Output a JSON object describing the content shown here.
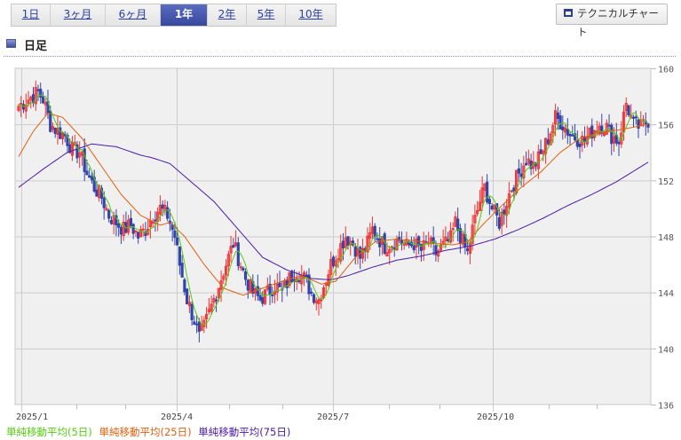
{
  "period_tabs": [
    {
      "label": "1日",
      "active": false
    },
    {
      "label": "3ヶ月",
      "active": false
    },
    {
      "label": "6ヶ月",
      "active": false
    },
    {
      "label": "1年",
      "active": true
    },
    {
      "label": "2年",
      "active": false
    },
    {
      "label": "5年",
      "active": false
    },
    {
      "label": "10年",
      "active": false
    }
  ],
  "technical_button": {
    "label": "テクニカルチャート",
    "icon": "window-icon"
  },
  "section": {
    "title": "日足",
    "icon": "square-bullet-icon"
  },
  "legend": [
    {
      "label": "単純移動平均(5日)",
      "color": "#55cc11"
    },
    {
      "label": "単純移動平均(25日)",
      "color": "#e06010"
    },
    {
      "label": "単純移動平均(75日)",
      "color": "#4b1aa8"
    }
  ],
  "colors": {
    "up_candle": "#ee3333",
    "down_candle": "#3344aa",
    "plot_bg": "#f0f0f0",
    "grid": "#cccccc",
    "active_tab": "#3e50a8"
  },
  "chart_data": {
    "type": "candlestick",
    "title": "日足",
    "x_tick_labels": [
      "2025/1",
      "2025/4",
      "2025/7",
      "2025/10"
    ],
    "y_tick_labels": [
      "160",
      "156",
      "152",
      "148",
      "144",
      "140",
      "136"
    ],
    "ylim": [
      136,
      160
    ],
    "y_axis_position": "right",
    "grid": true,
    "legend_position": "bottom-left",
    "series_ma": [
      {
        "name": "単純移動平均(5日)",
        "color": "#55cc11"
      },
      {
        "name": "単純移動平均(25日)",
        "color": "#e06010"
      },
      {
        "name": "単純移動平均(75日)",
        "color": "#4b1aa8"
      }
    ],
    "close_path": [
      [
        0,
        157.3
      ],
      [
        4,
        157.8
      ],
      [
        8,
        158.3
      ],
      [
        10,
        157.8
      ],
      [
        13,
        156.0
      ],
      [
        16,
        155.5
      ],
      [
        19,
        155.2
      ],
      [
        22,
        154.2
      ],
      [
        25,
        154.0
      ],
      [
        28,
        152.5
      ],
      [
        31,
        151.5
      ],
      [
        34,
        150.8
      ],
      [
        37,
        149.5
      ],
      [
        40,
        149.0
      ],
      [
        43,
        148.5
      ],
      [
        46,
        148.8
      ],
      [
        49,
        148.0
      ],
      [
        52,
        148.5
      ],
      [
        55,
        149.5
      ],
      [
        58,
        150.0
      ],
      [
        61,
        149.5
      ],
      [
        64,
        148.0
      ],
      [
        66,
        146.0
      ],
      [
        69,
        143.5
      ],
      [
        72,
        142.0
      ],
      [
        74,
        140.8
      ],
      [
        76,
        141.5
      ],
      [
        79,
        143.0
      ],
      [
        82,
        144.5
      ],
      [
        85,
        146.0
      ],
      [
        88,
        147.5
      ],
      [
        90,
        146.5
      ],
      [
        93,
        145.0
      ],
      [
        96,
        144.0
      ],
      [
        99,
        143.5
      ],
      [
        102,
        144.0
      ],
      [
        105,
        144.5
      ],
      [
        108,
        144.0
      ],
      [
        111,
        145.0
      ],
      [
        114,
        145.5
      ],
      [
        117,
        145.0
      ],
      [
        120,
        144.0
      ],
      [
        123,
        143.5
      ],
      [
        125,
        144.5
      ],
      [
        128,
        146.0
      ],
      [
        131,
        147.0
      ],
      [
        134,
        148.0
      ],
      [
        137,
        147.5
      ],
      [
        140,
        146.5
      ],
      [
        143,
        147.5
      ],
      [
        145,
        148.5
      ],
      [
        147,
        148.0
      ],
      [
        150,
        147.3
      ],
      [
        153,
        147.5
      ],
      [
        156,
        147.8
      ],
      [
        159,
        147.3
      ],
      [
        162,
        147.5
      ],
      [
        165,
        147.0
      ],
      [
        168,
        147.6
      ],
      [
        171,
        146.8
      ],
      [
        174,
        147.3
      ],
      [
        177,
        147.8
      ],
      [
        179,
        149.0
      ],
      [
        181,
        148.0
      ],
      [
        184,
        146.8
      ],
      [
        186,
        148.5
      ],
      [
        189,
        150.5
      ],
      [
        191,
        151.5
      ],
      [
        194,
        150.0
      ],
      [
        197,
        149.0
      ],
      [
        199,
        150.0
      ],
      [
        202,
        151.5
      ],
      [
        205,
        152.5
      ],
      [
        208,
        153.5
      ],
      [
        211,
        153.0
      ],
      [
        214,
        153.8
      ],
      [
        217,
        155.0
      ],
      [
        220,
        156.5
      ],
      [
        223,
        156.0
      ],
      [
        226,
        155.3
      ],
      [
        229,
        155.0
      ],
      [
        232,
        154.8
      ],
      [
        235,
        155.5
      ],
      [
        238,
        156.0
      ],
      [
        241,
        155.8
      ],
      [
        243,
        155.2
      ],
      [
        246,
        154.8
      ],
      [
        249,
        157.5
      ],
      [
        252,
        156.0
      ],
      [
        255,
        155.8
      ],
      [
        258,
        156.3
      ]
    ],
    "sma75_path": [
      [
        0,
        151.5
      ],
      [
        10,
        152.8
      ],
      [
        20,
        154.0
      ],
      [
        30,
        154.6
      ],
      [
        40,
        154.4
      ],
      [
        50,
        153.8
      ],
      [
        55,
        153.6
      ],
      [
        62,
        153.2
      ],
      [
        70,
        152.0
      ],
      [
        80,
        150.5
      ],
      [
        90,
        148.5
      ],
      [
        100,
        146.5
      ],
      [
        110,
        145.6
      ],
      [
        120,
        145.0
      ],
      [
        128,
        144.9
      ],
      [
        135,
        145.2
      ],
      [
        145,
        145.8
      ],
      [
        155,
        146.3
      ],
      [
        165,
        146.6
      ],
      [
        175,
        147.0
      ],
      [
        185,
        147.3
      ],
      [
        195,
        147.8
      ],
      [
        205,
        148.5
      ],
      [
        215,
        149.3
      ],
      [
        225,
        150.2
      ],
      [
        235,
        151.0
      ],
      [
        245,
        151.9
      ],
      [
        258,
        153.3
      ]
    ],
    "sma25_path": [
      [
        0,
        153.7
      ],
      [
        6,
        155.5
      ],
      [
        12,
        156.8
      ],
      [
        18,
        156.5
      ],
      [
        26,
        155.0
      ],
      [
        34,
        153.0
      ],
      [
        42,
        151.0
      ],
      [
        50,
        149.5
      ],
      [
        58,
        148.8
      ],
      [
        62,
        149.0
      ],
      [
        68,
        148.0
      ],
      [
        76,
        146.0
      ],
      [
        84,
        144.3
      ],
      [
        92,
        143.8
      ],
      [
        100,
        144.3
      ],
      [
        108,
        144.8
      ],
      [
        116,
        145.2
      ],
      [
        124,
        144.6
      ],
      [
        130,
        144.8
      ],
      [
        138,
        146.5
      ],
      [
        146,
        147.6
      ],
      [
        154,
        147.8
      ],
      [
        162,
        147.7
      ],
      [
        170,
        147.5
      ],
      [
        178,
        147.4
      ],
      [
        184,
        147.6
      ],
      [
        190,
        148.8
      ],
      [
        198,
        150.2
      ],
      [
        206,
        151.5
      ],
      [
        214,
        152.6
      ],
      [
        222,
        154.0
      ],
      [
        230,
        155.0
      ],
      [
        238,
        155.4
      ],
      [
        246,
        155.6
      ],
      [
        252,
        155.8
      ],
      [
        258,
        156.0
      ]
    ]
  }
}
